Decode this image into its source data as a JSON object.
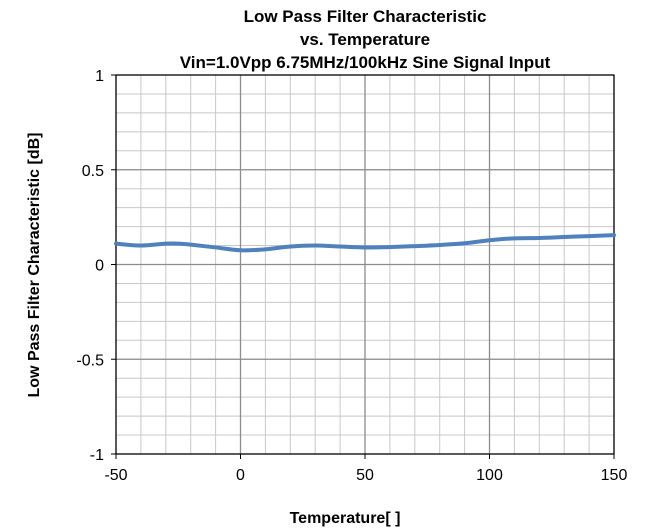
{
  "chart_data": {
    "type": "line",
    "title_lines": [
      "Low Pass Filter Characteristic",
      "vs. Temperature",
      "Vin=1.0Vpp 6.75MHz/100kHz Sine Signal Input"
    ],
    "xlabel": "Temperature[    ]",
    "ylabel": "Low Pass Filter Characteristic [dB]",
    "xlim": [
      -50,
      150
    ],
    "ylim": [
      -1,
      1
    ],
    "x_ticks": [
      -50,
      0,
      50,
      100,
      150
    ],
    "x_tick_labels": [
      "-50",
      "0",
      "50",
      "100",
      "150"
    ],
    "y_ticks": [
      -1,
      -0.5,
      0,
      0.5,
      1
    ],
    "y_tick_labels": [
      "-1",
      "-0.5",
      "0",
      "0.5",
      "1"
    ],
    "minor_x_step": 10,
    "minor_y_step": 0.1,
    "grid": true,
    "series": [
      {
        "color": "#4f81bd",
        "x": [
          -50,
          -40,
          -30,
          -25,
          -20,
          -10,
          0,
          10,
          20,
          30,
          40,
          50,
          60,
          70,
          80,
          90,
          100,
          110,
          120,
          130,
          140,
          150
        ],
        "values": [
          0.11,
          0.1,
          0.11,
          0.11,
          0.105,
          0.09,
          0.075,
          0.08,
          0.095,
          0.1,
          0.095,
          0.09,
          0.092,
          0.097,
          0.103,
          0.112,
          0.128,
          0.138,
          0.14,
          0.145,
          0.15,
          0.155
        ]
      }
    ]
  }
}
